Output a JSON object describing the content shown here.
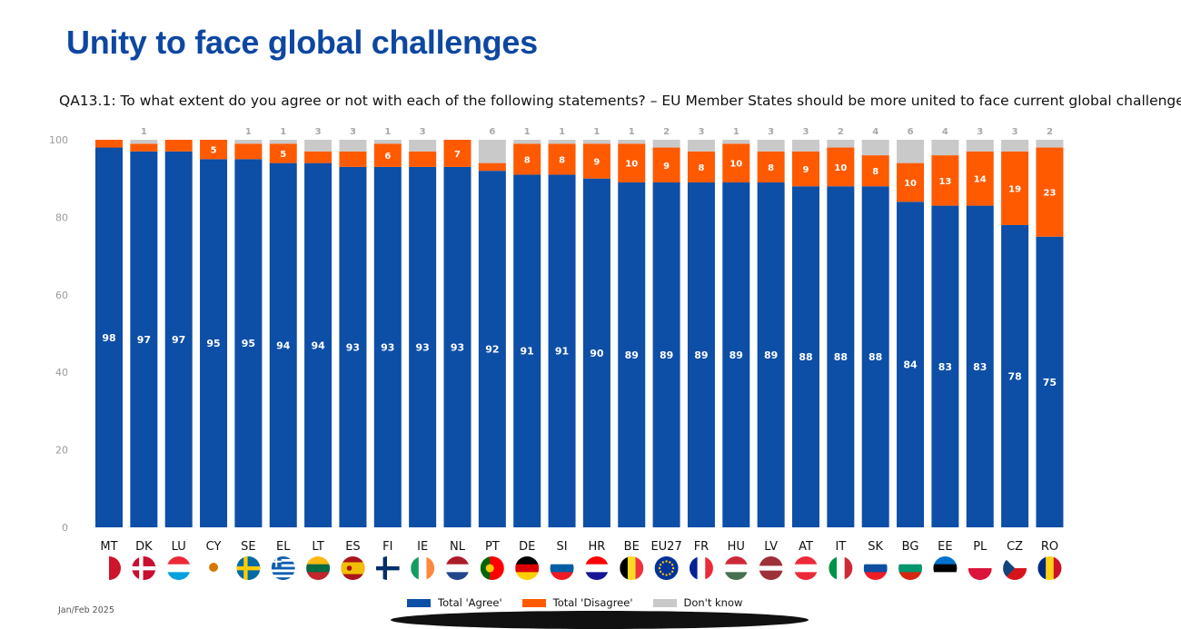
{
  "page": {
    "title": "Unity to face global challenges",
    "question": "QA13.1: To what extent do you agree or not with each of the following statements? – EU Member States should be more united to face current global challenges (%)",
    "footnote": "Jan/Feb 2025"
  },
  "colors": {
    "agree": "#0d4ea6",
    "disagree": "#ff5a00",
    "dont_know": "#c9c9c9",
    "title": "#0d47a1"
  },
  "legend": [
    {
      "label": "Total 'Agree'",
      "color": "#0d4ea6"
    },
    {
      "label": "Total 'Disagree'",
      "color": "#ff5a00"
    },
    {
      "label": "Don't know",
      "color": "#c9c9c9"
    }
  ],
  "chart_data": {
    "type": "bar",
    "stacked": true,
    "categories": [
      "MT",
      "DK",
      "LU",
      "CY",
      "SE",
      "EL",
      "LT",
      "ES",
      "FI",
      "IE",
      "NL",
      "PT",
      "DE",
      "SI",
      "HR",
      "BE",
      "EU27",
      "FR",
      "HU",
      "LV",
      "AT",
      "IT",
      "SK",
      "BG",
      "EE",
      "PL",
      "CZ",
      "RO"
    ],
    "series": [
      {
        "name": "Total 'Agree'",
        "values": [
          98,
          97,
          97,
          95,
          95,
          94,
          94,
          93,
          93,
          93,
          93,
          92,
          91,
          91,
          90,
          89,
          89,
          89,
          89,
          89,
          88,
          88,
          88,
          84,
          83,
          83,
          78,
          75
        ]
      },
      {
        "name": "Total 'Disagree'",
        "values": [
          2,
          2,
          3,
          5,
          4,
          5,
          3,
          4,
          6,
          4,
          7,
          2,
          8,
          8,
          9,
          10,
          9,
          8,
          10,
          8,
          9,
          10,
          8,
          10,
          13,
          14,
          19,
          23
        ]
      },
      {
        "name": "Don't know",
        "values": [
          0,
          1,
          0,
          0,
          1,
          1,
          3,
          3,
          1,
          3,
          0,
          6,
          1,
          1,
          1,
          1,
          2,
          3,
          1,
          3,
          3,
          2,
          4,
          6,
          4,
          3,
          3,
          2
        ]
      }
    ],
    "labels": {
      "agree": [
        "98",
        "97",
        "97",
        "95",
        "95",
        "94",
        "94",
        "93",
        "93",
        "93",
        "93",
        "92",
        "91",
        "91",
        "90",
        "89",
        "89",
        "89",
        "89",
        "89",
        "88",
        "88",
        "88",
        "84",
        "83",
        "83",
        "78",
        "75"
      ],
      "disagree": [
        "",
        "",
        "",
        "5",
        "",
        "5",
        "",
        "",
        "6",
        "",
        "7",
        "",
        "8",
        "8",
        "9",
        "10",
        "9",
        "8",
        "10",
        "8",
        "9",
        "10",
        "8",
        "10",
        "13",
        "14",
        "19",
        "23"
      ],
      "dont_know": [
        "",
        "1",
        "",
        "",
        "1",
        "1",
        "3",
        "3",
        "1",
        "3",
        "",
        "6",
        "1",
        "1",
        "1",
        "1",
        "2",
        "3",
        "1",
        "3",
        "3",
        "2",
        "4",
        "6",
        "4",
        "3",
        "3",
        "2"
      ]
    },
    "ylim": [
      0,
      100
    ],
    "yticks": [
      "0",
      "20",
      "40",
      "60",
      "80",
      "100"
    ],
    "grid": false,
    "legend_position": "bottom"
  },
  "flags": [
    {
      "code": "MT",
      "icon": "flag-malta",
      "stripes": "v",
      "colors": [
        "#ffffff",
        "#cf142b"
      ]
    },
    {
      "code": "DK",
      "icon": "flag-denmark",
      "stripes": "cross",
      "colors": [
        "#c8102e",
        "#ffffff"
      ]
    },
    {
      "code": "LU",
      "icon": "flag-luxembourg",
      "stripes": "h",
      "colors": [
        "#ed2939",
        "#ffffff",
        "#00a1de"
      ]
    },
    {
      "code": "CY",
      "icon": "flag-cyprus",
      "stripes": "emblem",
      "colors": [
        "#ffffff",
        "#d57800"
      ]
    },
    {
      "code": "SE",
      "icon": "flag-sweden",
      "stripes": "cross",
      "colors": [
        "#006aa7",
        "#fecc00"
      ]
    },
    {
      "code": "EL",
      "icon": "flag-greece",
      "stripes": "greece",
      "colors": [
        "#0d5eaf",
        "#ffffff"
      ]
    },
    {
      "code": "LT",
      "icon": "flag-lithuania",
      "stripes": "h",
      "colors": [
        "#fdb913",
        "#006a44",
        "#c1272d"
      ]
    },
    {
      "code": "ES",
      "icon": "flag-spain",
      "stripes": "spain",
      "colors": [
        "#aa151b",
        "#f1bf00"
      ]
    },
    {
      "code": "FI",
      "icon": "flag-finland",
      "stripes": "cross",
      "colors": [
        "#ffffff",
        "#002f6c"
      ]
    },
    {
      "code": "IE",
      "icon": "flag-ireland",
      "stripes": "v",
      "colors": [
        "#169b62",
        "#ffffff",
        "#ff883e"
      ]
    },
    {
      "code": "NL",
      "icon": "flag-netherlands",
      "stripes": "h",
      "colors": [
        "#ae1c28",
        "#ffffff",
        "#21468b"
      ]
    },
    {
      "code": "PT",
      "icon": "flag-portugal",
      "stripes": "portugal",
      "colors": [
        "#006600",
        "#ff0000",
        "#ffcc00"
      ]
    },
    {
      "code": "DE",
      "icon": "flag-germany",
      "stripes": "h",
      "colors": [
        "#000000",
        "#dd0000",
        "#ffce00"
      ]
    },
    {
      "code": "SI",
      "icon": "flag-slovenia",
      "stripes": "h",
      "colors": [
        "#ffffff",
        "#005da4",
        "#ed1c24"
      ]
    },
    {
      "code": "HR",
      "icon": "flag-croatia",
      "stripes": "h",
      "colors": [
        "#ff0000",
        "#ffffff",
        "#171796"
      ]
    },
    {
      "code": "BE",
      "icon": "flag-belgium",
      "stripes": "v",
      "colors": [
        "#000000",
        "#fdda24",
        "#ef3340"
      ]
    },
    {
      "code": "EU27",
      "icon": "flag-eu",
      "stripes": "eu",
      "colors": [
        "#003399",
        "#ffcc00"
      ]
    },
    {
      "code": "FR",
      "icon": "flag-france",
      "stripes": "v",
      "colors": [
        "#002395",
        "#ffffff",
        "#ed2939"
      ]
    },
    {
      "code": "HU",
      "icon": "flag-hungary",
      "stripes": "h",
      "colors": [
        "#ce2939",
        "#ffffff",
        "#477050"
      ]
    },
    {
      "code": "LV",
      "icon": "flag-latvia",
      "stripes": "latvia",
      "colors": [
        "#9e3039",
        "#ffffff"
      ]
    },
    {
      "code": "AT",
      "icon": "flag-austria",
      "stripes": "h",
      "colors": [
        "#ed2939",
        "#ffffff",
        "#ed2939"
      ]
    },
    {
      "code": "IT",
      "icon": "flag-italy",
      "stripes": "v",
      "colors": [
        "#009246",
        "#ffffff",
        "#ce2b37"
      ]
    },
    {
      "code": "SK",
      "icon": "flag-slovakia",
      "stripes": "h",
      "colors": [
        "#ffffff",
        "#0b4ea2",
        "#ee1c25"
      ]
    },
    {
      "code": "BG",
      "icon": "flag-bulgaria",
      "stripes": "h",
      "colors": [
        "#ffffff",
        "#00966e",
        "#d62612"
      ]
    },
    {
      "code": "EE",
      "icon": "flag-estonia",
      "stripes": "h",
      "colors": [
        "#0072ce",
        "#000000",
        "#ffffff"
      ]
    },
    {
      "code": "PL",
      "icon": "flag-poland",
      "stripes": "h",
      "colors": [
        "#ffffff",
        "#dc143c"
      ]
    },
    {
      "code": "CZ",
      "icon": "flag-czechia",
      "stripes": "czech",
      "colors": [
        "#ffffff",
        "#d7141a",
        "#11457e"
      ]
    },
    {
      "code": "RO",
      "icon": "flag-romania",
      "stripes": "v",
      "colors": [
        "#002b7f",
        "#fcd116",
        "#ce1126"
      ]
    }
  ]
}
